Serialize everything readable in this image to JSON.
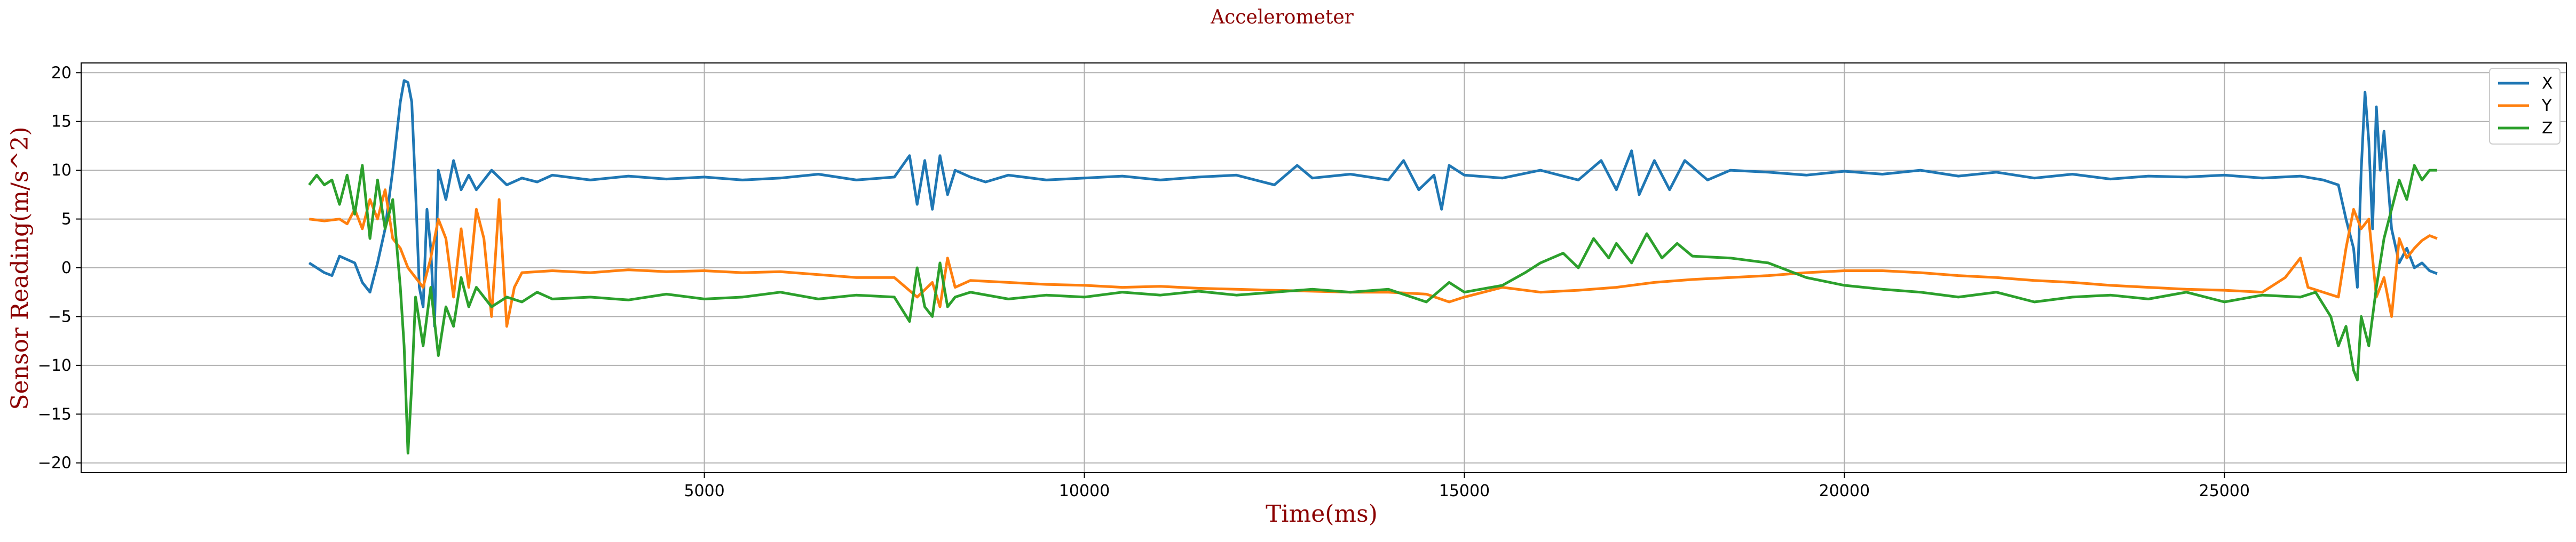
{
  "chart_data": {
    "type": "line",
    "title": "Accelerometer",
    "xlabel": "Time(ms)",
    "ylabel": "Sensor Reading(m/s^2)",
    "xlim": [
      -3200,
      29500
    ],
    "ylim": [
      -21,
      21
    ],
    "x_ticks": [
      5000,
      10000,
      15000,
      20000,
      25000
    ],
    "x_tick_labels": [
      "5000",
      "10000",
      "15000",
      "20000",
      "25000"
    ],
    "y_ticks": [
      -20,
      -15,
      -10,
      -5,
      0,
      5,
      10,
      15,
      20
    ],
    "y_tick_labels": [
      "−20",
      "−15",
      "−10",
      "−5",
      "0",
      "5",
      "10",
      "15",
      "20"
    ],
    "grid": true,
    "legend_position": "top-right",
    "title_color": "#8b0000",
    "label_color": "#8b0000",
    "series": [
      {
        "name": "X",
        "color": "#1f77b4",
        "points": [
          [
            -200,
            0.5
          ],
          [
            0,
            -0.5
          ],
          [
            100,
            -0.8
          ],
          [
            200,
            1.2
          ],
          [
            400,
            0.5
          ],
          [
            500,
            -1.5
          ],
          [
            600,
            -2.5
          ],
          [
            700,
            0.5
          ],
          [
            800,
            4
          ],
          [
            900,
            10
          ],
          [
            1000,
            17
          ],
          [
            1050,
            19.2
          ],
          [
            1100,
            19
          ],
          [
            1150,
            17
          ],
          [
            1200,
            8
          ],
          [
            1250,
            -2
          ],
          [
            1300,
            -4
          ],
          [
            1350,
            6
          ],
          [
            1400,
            2
          ],
          [
            1450,
            -6
          ],
          [
            1500,
            10
          ],
          [
            1600,
            7
          ],
          [
            1700,
            11
          ],
          [
            1800,
            8
          ],
          [
            1900,
            9.5
          ],
          [
            2000,
            8
          ],
          [
            2200,
            10
          ],
          [
            2400,
            8.5
          ],
          [
            2600,
            9.2
          ],
          [
            2800,
            8.8
          ],
          [
            3000,
            9.5
          ],
          [
            3500,
            9
          ],
          [
            4000,
            9.4
          ],
          [
            4500,
            9.1
          ],
          [
            5000,
            9.3
          ],
          [
            5500,
            9
          ],
          [
            6000,
            9.2
          ],
          [
            6500,
            9.6
          ],
          [
            7000,
            9
          ],
          [
            7500,
            9.3
          ],
          [
            7700,
            11.5
          ],
          [
            7800,
            6.5
          ],
          [
            7900,
            11
          ],
          [
            8000,
            6
          ],
          [
            8100,
            11.5
          ],
          [
            8200,
            7.5
          ],
          [
            8300,
            10
          ],
          [
            8500,
            9.3
          ],
          [
            8700,
            8.8
          ],
          [
            9000,
            9.5
          ],
          [
            9500,
            9
          ],
          [
            10000,
            9.2
          ],
          [
            10500,
            9.4
          ],
          [
            11000,
            9
          ],
          [
            11500,
            9.3
          ],
          [
            12000,
            9.5
          ],
          [
            12500,
            8.5
          ],
          [
            12800,
            10.5
          ],
          [
            13000,
            9.2
          ],
          [
            13500,
            9.6
          ],
          [
            14000,
            9
          ],
          [
            14200,
            11
          ],
          [
            14400,
            8
          ],
          [
            14600,
            9.5
          ],
          [
            14700,
            6
          ],
          [
            14800,
            10.5
          ],
          [
            15000,
            9.5
          ],
          [
            15500,
            9.2
          ],
          [
            16000,
            10
          ],
          [
            16500,
            9
          ],
          [
            16800,
            11
          ],
          [
            17000,
            8
          ],
          [
            17200,
            12
          ],
          [
            17300,
            7.5
          ],
          [
            17500,
            11
          ],
          [
            17700,
            8
          ],
          [
            17900,
            11
          ],
          [
            18200,
            9
          ],
          [
            18500,
            10
          ],
          [
            19000,
            9.8
          ],
          [
            19500,
            9.5
          ],
          [
            20000,
            9.9
          ],
          [
            20500,
            9.6
          ],
          [
            21000,
            10
          ],
          [
            21500,
            9.4
          ],
          [
            22000,
            9.8
          ],
          [
            22500,
            9.2
          ],
          [
            23000,
            9.6
          ],
          [
            23500,
            9.1
          ],
          [
            24000,
            9.4
          ],
          [
            24500,
            9.3
          ],
          [
            25000,
            9.5
          ],
          [
            25500,
            9.2
          ],
          [
            26000,
            9.4
          ],
          [
            26300,
            9
          ],
          [
            26500,
            8.5
          ],
          [
            26600,
            5
          ],
          [
            26700,
            2
          ],
          [
            26750,
            -2
          ],
          [
            26800,
            10
          ],
          [
            26850,
            18
          ],
          [
            26900,
            13
          ],
          [
            26950,
            4
          ],
          [
            27000,
            16.5
          ],
          [
            27050,
            10
          ],
          [
            27100,
            14
          ],
          [
            27200,
            4
          ],
          [
            27300,
            0.5
          ],
          [
            27400,
            2
          ],
          [
            27500,
            0
          ],
          [
            27600,
            0.5
          ],
          [
            27700,
            -0.3
          ],
          [
            27800,
            -0.6
          ]
        ]
      },
      {
        "name": "Y",
        "color": "#ff7f0e",
        "points": [
          [
            -200,
            5
          ],
          [
            0,
            4.8
          ],
          [
            200,
            5
          ],
          [
            300,
            4.5
          ],
          [
            400,
            6
          ],
          [
            500,
            4
          ],
          [
            600,
            7
          ],
          [
            700,
            5
          ],
          [
            800,
            8
          ],
          [
            900,
            3
          ],
          [
            1000,
            2
          ],
          [
            1100,
            0
          ],
          [
            1200,
            -1
          ],
          [
            1300,
            -2
          ],
          [
            1400,
            1
          ],
          [
            1500,
            5
          ],
          [
            1600,
            3
          ],
          [
            1700,
            -3
          ],
          [
            1800,
            4
          ],
          [
            1900,
            -2
          ],
          [
            2000,
            6
          ],
          [
            2100,
            3
          ],
          [
            2200,
            -5
          ],
          [
            2300,
            7
          ],
          [
            2400,
            -6
          ],
          [
            2500,
            -2
          ],
          [
            2600,
            -0.5
          ],
          [
            3000,
            -0.3
          ],
          [
            3500,
            -0.5
          ],
          [
            4000,
            -0.2
          ],
          [
            4500,
            -0.4
          ],
          [
            5000,
            -0.3
          ],
          [
            5500,
            -0.5
          ],
          [
            6000,
            -0.4
          ],
          [
            6500,
            -0.7
          ],
          [
            7000,
            -1
          ],
          [
            7500,
            -1
          ],
          [
            7800,
            -3
          ],
          [
            8000,
            -1.5
          ],
          [
            8100,
            -4
          ],
          [
            8200,
            1
          ],
          [
            8300,
            -2
          ],
          [
            8500,
            -1.3
          ],
          [
            9000,
            -1.5
          ],
          [
            9500,
            -1.7
          ],
          [
            10000,
            -1.8
          ],
          [
            10500,
            -2
          ],
          [
            11000,
            -1.9
          ],
          [
            11500,
            -2.1
          ],
          [
            12000,
            -2.2
          ],
          [
            12500,
            -2.3
          ],
          [
            13000,
            -2.4
          ],
          [
            13500,
            -2.5
          ],
          [
            14000,
            -2.5
          ],
          [
            14500,
            -2.7
          ],
          [
            14800,
            -3.5
          ],
          [
            15000,
            -3
          ],
          [
            15500,
            -2
          ],
          [
            16000,
            -2.5
          ],
          [
            16500,
            -2.3
          ],
          [
            17000,
            -2
          ],
          [
            17500,
            -1.5
          ],
          [
            18000,
            -1.2
          ],
          [
            18500,
            -1
          ],
          [
            19000,
            -0.8
          ],
          [
            19500,
            -0.5
          ],
          [
            20000,
            -0.3
          ],
          [
            20500,
            -0.3
          ],
          [
            21000,
            -0.5
          ],
          [
            21500,
            -0.8
          ],
          [
            22000,
            -1
          ],
          [
            22500,
            -1.3
          ],
          [
            23000,
            -1.5
          ],
          [
            23500,
            -1.8
          ],
          [
            24000,
            -2
          ],
          [
            24500,
            -2.2
          ],
          [
            25000,
            -2.3
          ],
          [
            25500,
            -2.5
          ],
          [
            25800,
            -1
          ],
          [
            26000,
            1
          ],
          [
            26100,
            -2
          ],
          [
            26300,
            -2.5
          ],
          [
            26500,
            -3
          ],
          [
            26600,
            2
          ],
          [
            26700,
            6
          ],
          [
            26800,
            4
          ],
          [
            26900,
            5
          ],
          [
            27000,
            -3
          ],
          [
            27100,
            -1
          ],
          [
            27200,
            -5
          ],
          [
            27300,
            3
          ],
          [
            27400,
            1
          ],
          [
            27500,
            2
          ],
          [
            27600,
            2.8
          ],
          [
            27700,
            3.3
          ],
          [
            27800,
            3
          ]
        ]
      },
      {
        "name": "Z",
        "color": "#2ca02c",
        "points": [
          [
            -200,
            8.5
          ],
          [
            -100,
            9.5
          ],
          [
            0,
            8.5
          ],
          [
            100,
            9
          ],
          [
            200,
            6.5
          ],
          [
            300,
            9.5
          ],
          [
            400,
            5.5
          ],
          [
            500,
            10.5
          ],
          [
            600,
            3
          ],
          [
            700,
            9
          ],
          [
            800,
            4
          ],
          [
            900,
            7
          ],
          [
            1000,
            -2
          ],
          [
            1050,
            -8
          ],
          [
            1100,
            -19
          ],
          [
            1150,
            -12
          ],
          [
            1200,
            -3
          ],
          [
            1300,
            -8
          ],
          [
            1400,
            -2
          ],
          [
            1500,
            -9
          ],
          [
            1600,
            -4
          ],
          [
            1700,
            -6
          ],
          [
            1800,
            -1
          ],
          [
            1900,
            -4
          ],
          [
            2000,
            -2
          ],
          [
            2200,
            -4
          ],
          [
            2400,
            -3
          ],
          [
            2600,
            -3.5
          ],
          [
            2800,
            -2.5
          ],
          [
            3000,
            -3.2
          ],
          [
            3500,
            -3
          ],
          [
            4000,
            -3.3
          ],
          [
            4500,
            -2.7
          ],
          [
            5000,
            -3.2
          ],
          [
            5500,
            -3
          ],
          [
            6000,
            -2.5
          ],
          [
            6500,
            -3.2
          ],
          [
            7000,
            -2.8
          ],
          [
            7500,
            -3
          ],
          [
            7700,
            -5.5
          ],
          [
            7800,
            0
          ],
          [
            7900,
            -4
          ],
          [
            8000,
            -5
          ],
          [
            8100,
            0.5
          ],
          [
            8200,
            -4
          ],
          [
            8300,
            -3
          ],
          [
            8500,
            -2.5
          ],
          [
            9000,
            -3.2
          ],
          [
            9500,
            -2.8
          ],
          [
            10000,
            -3
          ],
          [
            10500,
            -2.5
          ],
          [
            11000,
            -2.8
          ],
          [
            11500,
            -2.4
          ],
          [
            12000,
            -2.8
          ],
          [
            12500,
            -2.5
          ],
          [
            13000,
            -2.2
          ],
          [
            13500,
            -2.5
          ],
          [
            14000,
            -2.2
          ],
          [
            14500,
            -3.5
          ],
          [
            14800,
            -1.5
          ],
          [
            15000,
            -2.5
          ],
          [
            15500,
            -1.8
          ],
          [
            15800,
            -0.5
          ],
          [
            16000,
            0.5
          ],
          [
            16300,
            1.5
          ],
          [
            16500,
            0
          ],
          [
            16700,
            3
          ],
          [
            16900,
            1
          ],
          [
            17000,
            2.5
          ],
          [
            17200,
            0.5
          ],
          [
            17400,
            3.5
          ],
          [
            17600,
            1
          ],
          [
            17800,
            2.5
          ],
          [
            18000,
            1.2
          ],
          [
            18500,
            1
          ],
          [
            19000,
            0.5
          ],
          [
            19500,
            -1
          ],
          [
            20000,
            -1.8
          ],
          [
            20500,
            -2.2
          ],
          [
            21000,
            -2.5
          ],
          [
            21500,
            -3
          ],
          [
            22000,
            -2.5
          ],
          [
            22500,
            -3.5
          ],
          [
            23000,
            -3
          ],
          [
            23500,
            -2.8
          ],
          [
            24000,
            -3.2
          ],
          [
            24500,
            -2.5
          ],
          [
            25000,
            -3.5
          ],
          [
            25500,
            -2.8
          ],
          [
            26000,
            -3
          ],
          [
            26200,
            -2.5
          ],
          [
            26400,
            -5
          ],
          [
            26500,
            -8
          ],
          [
            26600,
            -6
          ],
          [
            26700,
            -10.5
          ],
          [
            26750,
            -11.5
          ],
          [
            26800,
            -5
          ],
          [
            26900,
            -8
          ],
          [
            27000,
            -2
          ],
          [
            27100,
            3
          ],
          [
            27200,
            6
          ],
          [
            27300,
            9
          ],
          [
            27400,
            7
          ],
          [
            27500,
            10.5
          ],
          [
            27600,
            9
          ],
          [
            27700,
            10
          ],
          [
            27800,
            10
          ]
        ]
      }
    ]
  }
}
